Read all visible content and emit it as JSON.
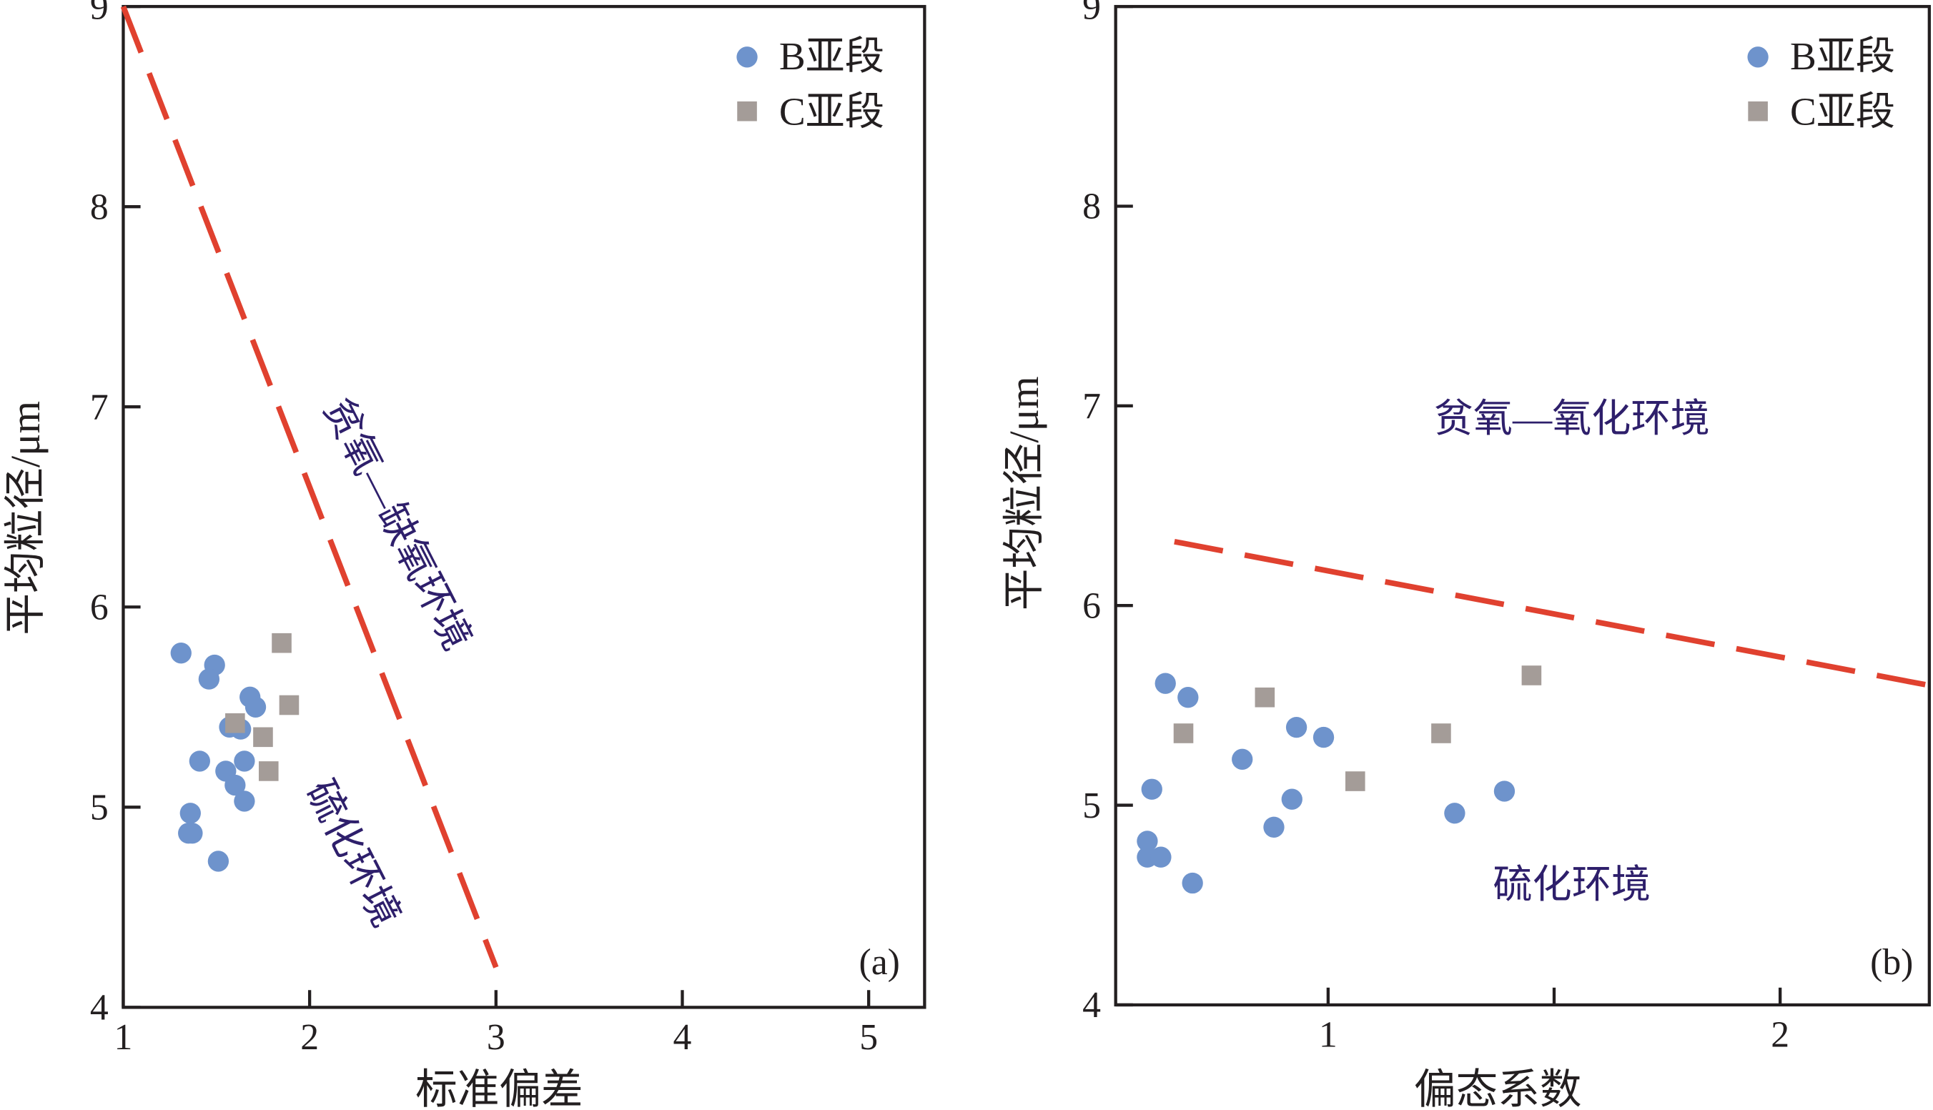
{
  "chart_data": [
    {
      "type": "scatter",
      "panel_label": "(a)",
      "xlabel": "标准偏差",
      "ylabel": "平均粒径/μm",
      "xlim": [
        1,
        5.3
      ],
      "ylim": [
        4,
        9
      ],
      "xticks": [
        1,
        2,
        3,
        4,
        5
      ],
      "yticks": [
        4,
        5,
        6,
        7,
        8,
        9
      ],
      "legend": {
        "placement": "top-right",
        "entries": [
          "B亚段",
          "C亚段"
        ]
      },
      "series": [
        {
          "name": "B亚段",
          "marker": "circle",
          "color": "#6e93cc",
          "points": [
            [
              1.31,
              5.77
            ],
            [
              1.49,
              5.71
            ],
            [
              1.46,
              5.64
            ],
            [
              1.68,
              5.55
            ],
            [
              1.71,
              5.5
            ],
            [
              1.57,
              5.4
            ],
            [
              1.63,
              5.39
            ],
            [
              1.41,
              5.23
            ],
            [
              1.55,
              5.18
            ],
            [
              1.65,
              5.23
            ],
            [
              1.6,
              5.11
            ],
            [
              1.65,
              5.03
            ],
            [
              1.36,
              4.97
            ],
            [
              1.35,
              4.87
            ],
            [
              1.37,
              4.87
            ],
            [
              1.51,
              4.73
            ]
          ]
        },
        {
          "name": "C亚段",
          "marker": "square",
          "color": "#a49c98",
          "points": [
            [
              1.85,
              5.82
            ],
            [
              1.89,
              5.51
            ],
            [
              1.6,
              5.42
            ],
            [
              1.75,
              5.35
            ],
            [
              1.78,
              5.18
            ]
          ]
        }
      ],
      "boundary": {
        "color": "#e0412f",
        "from": [
          1,
          9
        ],
        "to": [
          3,
          4.2
        ]
      },
      "annotations": [
        "贫氧—缺氧环境",
        "硫化环境"
      ]
    },
    {
      "type": "scatter",
      "panel_label": "(b)",
      "xlabel": "偏态系数",
      "ylabel": "平均粒径/μm",
      "xlim": [
        0.53,
        2.33
      ],
      "ylim": [
        4,
        9
      ],
      "xticks": [
        1,
        2
      ],
      "xticks_minor": [
        1.5
      ],
      "yticks": [
        4,
        5,
        6,
        7,
        8,
        9
      ],
      "legend": {
        "placement": "top-right",
        "entries": [
          "B亚段",
          "C亚段"
        ]
      },
      "series": [
        {
          "name": "B亚段",
          "marker": "circle",
          "color": "#6e93cc",
          "points": [
            [
              0.64,
              5.61
            ],
            [
              0.69,
              5.54
            ],
            [
              0.93,
              5.39
            ],
            [
              0.99,
              5.34
            ],
            [
              0.81,
              5.23
            ],
            [
              0.61,
              5.08
            ],
            [
              0.92,
              5.03
            ],
            [
              0.88,
              4.89
            ],
            [
              1.28,
              4.96
            ],
            [
              1.39,
              5.07
            ],
            [
              0.6,
              4.82
            ],
            [
              0.6,
              4.74
            ],
            [
              0.63,
              4.74
            ],
            [
              0.7,
              4.61
            ]
          ]
        },
        {
          "name": "C亚段",
          "marker": "square",
          "color": "#a49c98",
          "points": [
            [
              0.68,
              5.36
            ],
            [
              0.86,
              5.54
            ],
            [
              1.06,
              5.12
            ],
            [
              1.25,
              5.36
            ],
            [
              1.45,
              5.65
            ]
          ]
        }
      ],
      "boundary": {
        "color": "#e0412f",
        "from": [
          0.66,
          6.32
        ],
        "to": [
          2.33,
          5.6
        ]
      },
      "annotations": [
        "贫氧—氧化环境",
        "硫化环境"
      ]
    }
  ]
}
